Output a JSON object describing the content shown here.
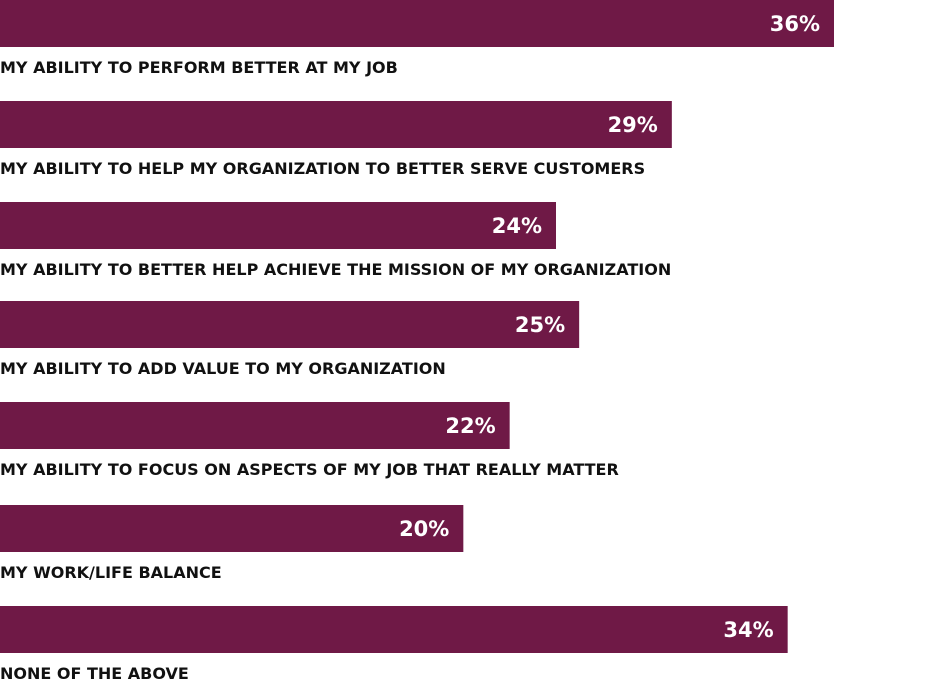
{
  "chart_data": {
    "type": "bar",
    "orientation": "horizontal",
    "categories": [
      "MY ABILITY TO PERFORM BETTER AT MY JOB",
      "MY ABILITY TO HELP MY ORGANIZATION TO BETTER SERVE CUSTOMERS",
      "MY ABILITY TO BETTER HELP ACHIEVE THE MISSION OF MY ORGANIZATION",
      "MY ABILITY TO ADD VALUE TO MY ORGANIZATION",
      "MY ABILITY TO FOCUS ON ASPECTS OF MY JOB THAT REALLY MATTER",
      "MY WORK/LIFE BALANCE",
      "NONE OF THE ABOVE"
    ],
    "values": [
      36,
      29,
      24,
      25,
      22,
      20,
      34
    ],
    "value_labels": [
      "36%",
      "29%",
      "24%",
      "25%",
      "22%",
      "20%",
      "34%"
    ],
    "bar_color": "#6f1946",
    "grid": false,
    "legend": "none"
  }
}
